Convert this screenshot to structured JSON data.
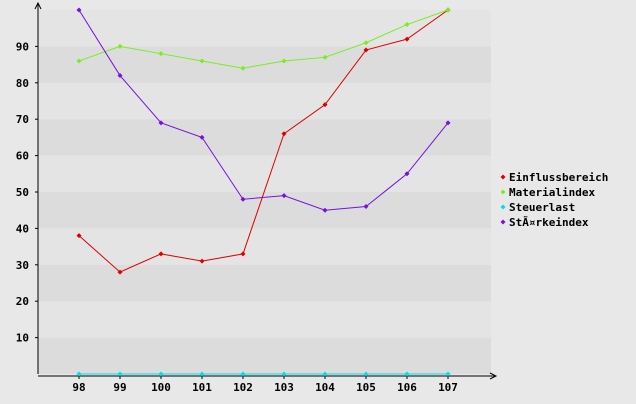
{
  "chart_data": {
    "type": "line",
    "categories": [
      "98",
      "99",
      "100",
      "101",
      "102",
      "103",
      "104",
      "105",
      "106",
      "107"
    ],
    "y_ticks": [
      "10",
      "20",
      "30",
      "40",
      "50",
      "60",
      "70",
      "80",
      "90"
    ],
    "ylim": [
      0,
      100
    ],
    "grid": "horizontal bands",
    "legend_position": "right",
    "series": [
      {
        "name": "Einflussbereich",
        "color": "#dd0000",
        "values": [
          38,
          28,
          33,
          31,
          33,
          66,
          74,
          89,
          92,
          100
        ]
      },
      {
        "name": "Materialindex",
        "color": "#77ee22",
        "values": [
          86,
          90,
          88,
          86,
          84,
          86,
          87,
          91,
          96,
          100
        ]
      },
      {
        "name": "Steuerlast",
        "color": "#00ddee",
        "values": [
          0,
          0,
          0,
          0,
          0,
          0,
          0,
          0,
          0,
          0
        ]
      },
      {
        "name": "StÃ¤rkeindex",
        "color": "#7711dd",
        "values": [
          100,
          82,
          69,
          65,
          48,
          49,
          45,
          46,
          55,
          69
        ]
      }
    ]
  }
}
